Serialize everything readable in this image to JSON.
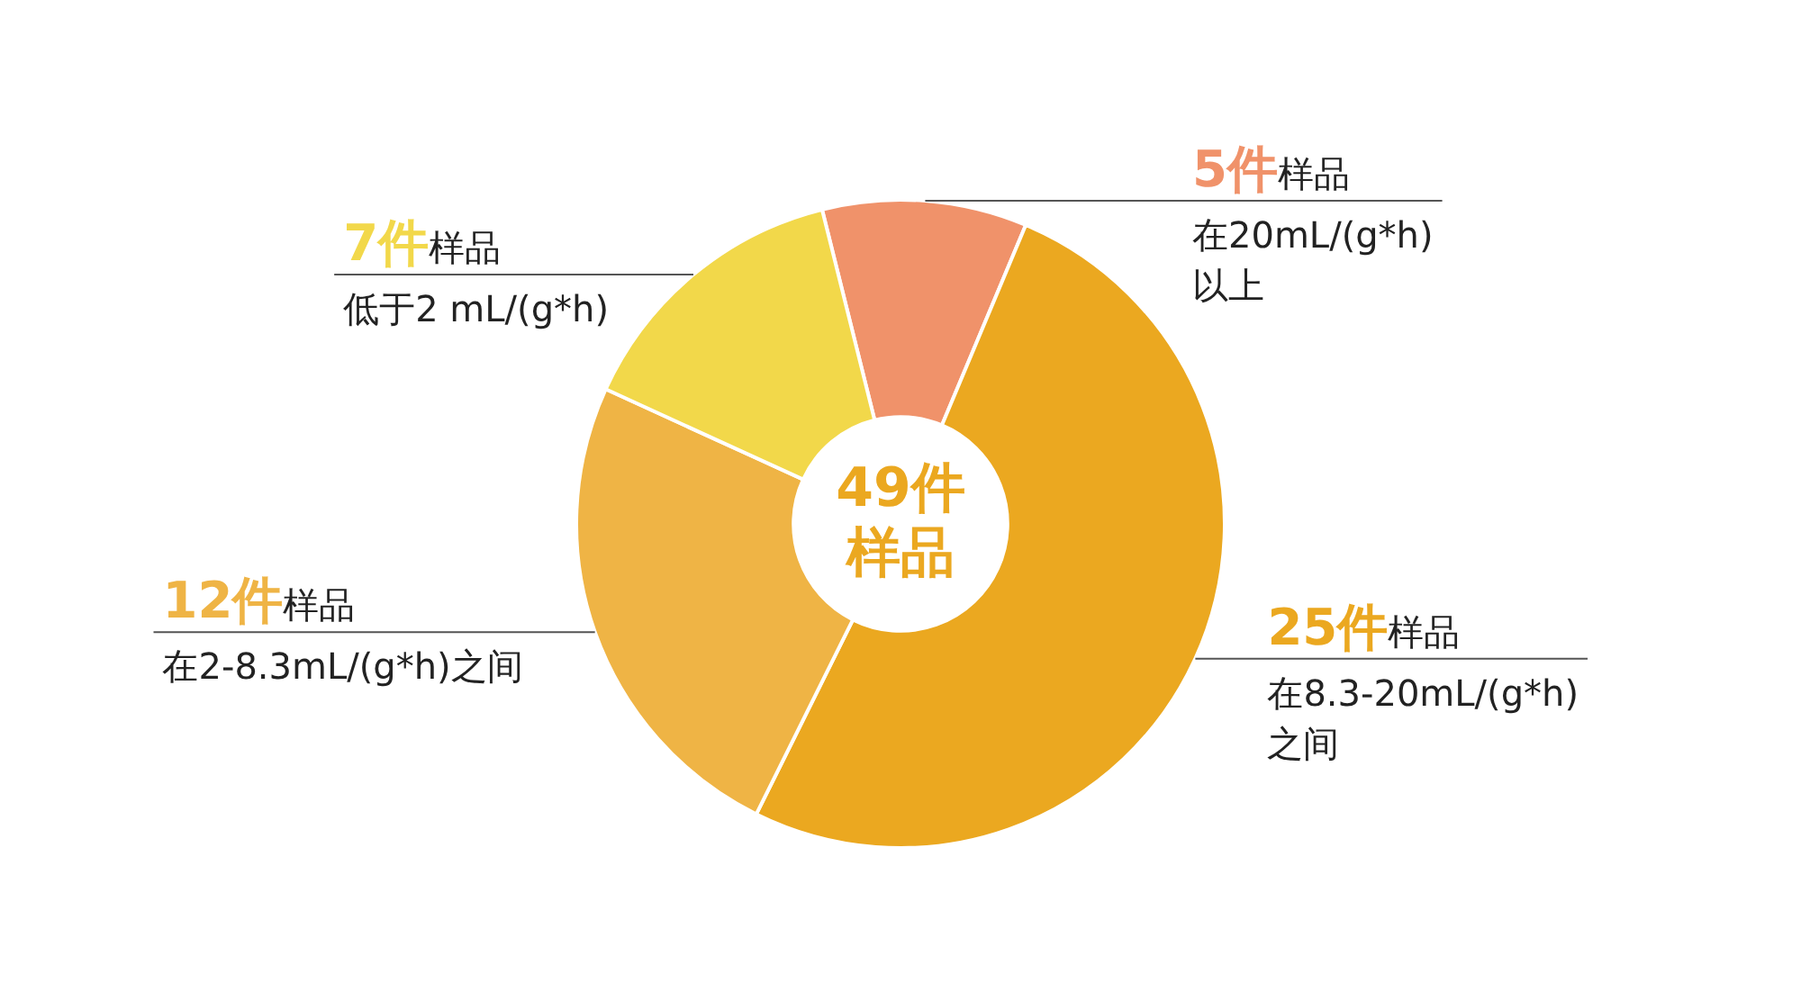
{
  "chart_data": {
    "type": "donut",
    "categories": [
      "在20mL/(g*h)\n以上",
      "在8.3-20mL/(g*h)\n之间",
      "在2-8.3mL/(g*h)之间",
      "低于2 mL/(g*h)"
    ],
    "values": [
      5,
      25,
      12,
      7
    ],
    "value_labels": [
      "5件样品",
      "25件样品",
      "12件样品",
      "7件样品"
    ],
    "colors": [
      "#f0926a",
      "#eba820",
      "#efb445",
      "#f2d84a"
    ],
    "annotations": [
      "49件样品"
    ],
    "legend": false
  }
}
